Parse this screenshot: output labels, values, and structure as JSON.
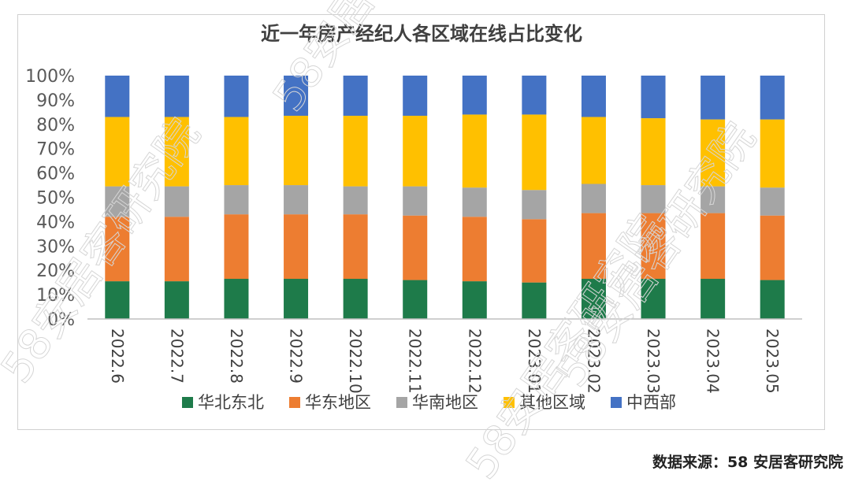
{
  "chart_data": {
    "type": "bar",
    "stacked": "percent",
    "title": "近一年房产经纪人各区域在线占比变化",
    "categories": [
      "2022.6",
      "2022.7",
      "2022.8",
      "2022.9",
      "2022.10",
      "2022.11",
      "2022.12",
      "2023.01",
      "2023.02",
      "2023.03",
      "2023.04",
      "2023.05"
    ],
    "series": [
      {
        "name": "华北东北",
        "color": "#1e7b4a",
        "values": [
          15.5,
          15.5,
          16.5,
          16.5,
          16.5,
          16,
          15.5,
          15,
          16.5,
          16.5,
          16.5,
          16
        ]
      },
      {
        "name": "华东地区",
        "color": "#ed7d31",
        "values": [
          26.5,
          26.5,
          26.5,
          26.5,
          26.5,
          26.5,
          26.5,
          26,
          27,
          27,
          27,
          26.5
        ]
      },
      {
        "name": "华南地区",
        "color": "#a5a5a5",
        "values": [
          12.5,
          12.5,
          12,
          12,
          11.5,
          12,
          12,
          12,
          12,
          11.5,
          11,
          11.5
        ]
      },
      {
        "name": "其他区域",
        "color": "#ffc000",
        "values": [
          28.5,
          28.5,
          28,
          28.5,
          29,
          29,
          30,
          31,
          27.5,
          27.5,
          27.5,
          28
        ]
      },
      {
        "name": "中西部",
        "color": "#4472c4",
        "values": [
          17,
          17,
          17,
          16.5,
          16.5,
          16.5,
          16,
          16,
          17,
          17.5,
          18,
          18
        ]
      }
    ],
    "y_ticks": [
      "0%",
      "10%",
      "20%",
      "30%",
      "40%",
      "50%",
      "60%",
      "70%",
      "80%",
      "90%",
      "100%"
    ],
    "ylim": [
      0,
      100
    ],
    "xlabel": "",
    "ylabel": "",
    "legend": "bottom"
  },
  "source": "数据来源：58 安居客研究院",
  "watermark": "58安居客研究院"
}
